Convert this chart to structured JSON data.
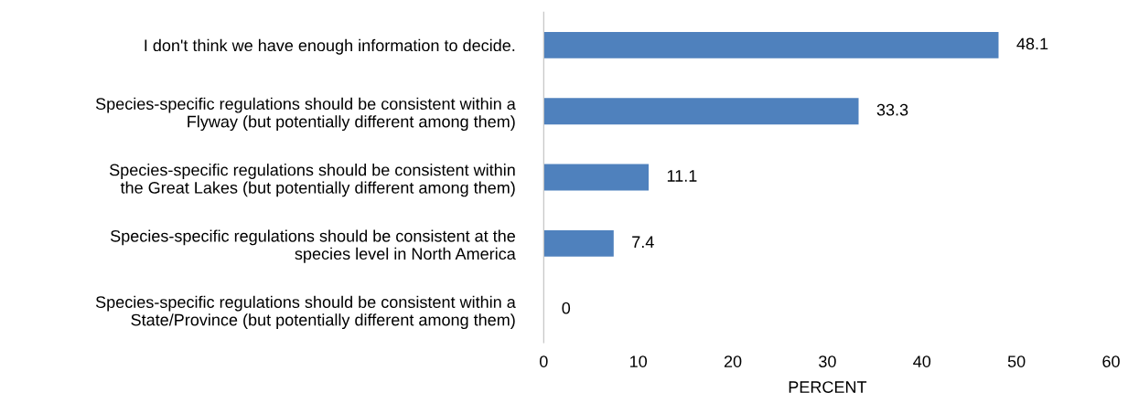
{
  "chart_data": {
    "type": "bar",
    "orientation": "horizontal",
    "xlabel": "PERCENT",
    "categories": [
      "I don't think we have enough information to decide.",
      "Species-specific regulations should be consistent within a\nFlyway (but potentially different among them)",
      "Species-specific regulations should be consistent within\nthe Great Lakes (but potentially different among them)",
      "Species-specific regulations should be consistent at the\nspecies level in North America",
      "Species-specific regulations should be consistent within a\nState/Province (but potentially different among them)"
    ],
    "values": [
      48.1,
      33.3,
      11.1,
      7.4,
      0
    ],
    "color": "#4f81bd",
    "xlim": [
      0,
      60
    ],
    "xticks": [
      0,
      10,
      20,
      30,
      40,
      50,
      60
    ],
    "data_labels": true,
    "grid": false
  }
}
